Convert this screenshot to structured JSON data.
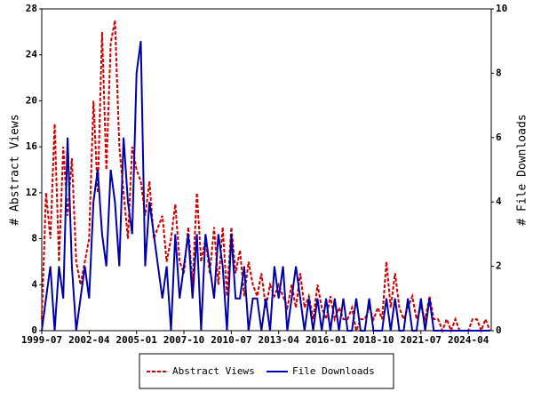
{
  "chart_data": {
    "type": "line",
    "y_label": "# Abstract Views",
    "y2_label": "# File Downloads",
    "x": [
      "1999-07",
      "1999-10",
      "2000-01",
      "2000-04",
      "2000-07",
      "2000-10",
      "2001-01",
      "2001-04",
      "2001-07",
      "2001-10",
      "2002-01",
      "2002-04",
      "2002-07",
      "2002-10",
      "2003-01",
      "2003-04",
      "2003-07",
      "2003-10",
      "2004-01",
      "2004-04",
      "2004-07",
      "2004-10",
      "2005-01",
      "2005-04",
      "2005-07",
      "2005-10",
      "2006-01",
      "2006-04",
      "2006-07",
      "2006-10",
      "2007-01",
      "2007-04",
      "2007-07",
      "2007-10",
      "2008-01",
      "2008-04",
      "2008-07",
      "2008-10",
      "2009-01",
      "2009-04",
      "2009-07",
      "2009-10",
      "2010-01",
      "2010-04",
      "2010-07",
      "2010-10",
      "2011-01",
      "2011-04",
      "2011-07",
      "2011-10",
      "2012-01",
      "2012-04",
      "2012-07",
      "2012-10",
      "2013-01",
      "2013-04",
      "2013-07",
      "2013-10",
      "2014-01",
      "2014-04",
      "2014-07",
      "2014-10",
      "2015-01",
      "2015-04",
      "2015-07",
      "2015-10",
      "2016-01",
      "2016-04",
      "2016-07",
      "2016-10",
      "2017-01",
      "2017-04",
      "2017-07",
      "2017-10",
      "2018-01",
      "2018-04",
      "2018-07",
      "2018-10",
      "2019-01",
      "2019-04",
      "2019-07",
      "2019-10",
      "2020-01",
      "2020-04",
      "2020-07",
      "2020-10",
      "2021-01",
      "2021-04",
      "2021-07",
      "2021-10",
      "2022-01",
      "2022-04",
      "2022-07",
      "2022-10",
      "2023-01",
      "2023-04",
      "2023-07",
      "2023-10",
      "2024-01",
      "2024-04",
      "2024-07",
      "2024-10",
      "2025-01",
      "2025-04",
      "2025-07"
    ],
    "series": [
      {
        "name": "Abstract Views",
        "color": "#cc0000",
        "dash": true,
        "values": [
          1,
          12,
          8,
          18,
          6,
          16,
          10,
          15,
          6,
          4,
          6,
          8,
          20,
          12,
          26,
          14,
          25,
          27,
          16,
          12,
          8,
          16,
          14,
          13,
          10,
          13,
          8,
          9,
          10,
          6,
          8,
          11,
          6,
          5,
          9,
          4,
          12,
          6,
          8,
          5,
          9,
          4,
          9,
          3,
          9,
          5,
          7,
          3,
          6,
          4,
          3,
          5,
          2,
          4,
          3,
          4,
          3,
          2,
          4,
          2,
          5,
          2,
          3,
          1,
          4,
          2,
          1,
          3,
          1,
          2,
          1,
          1,
          2,
          0,
          1,
          1,
          2,
          1,
          2,
          1,
          6,
          2,
          5,
          2,
          1,
          2,
          3,
          1,
          2,
          1,
          3,
          1,
          1,
          0,
          1,
          0,
          1,
          0,
          0,
          0,
          1,
          1,
          0,
          1,
          0
        ]
      },
      {
        "name": "File Downloads",
        "color": "#0000aa",
        "dash": false,
        "axis": "y2",
        "values": [
          0,
          1,
          2,
          0,
          2,
          1,
          6,
          2,
          0,
          1,
          2,
          1,
          4,
          5,
          3,
          2,
          5,
          4,
          2,
          6,
          4,
          3,
          8,
          9,
          2,
          4,
          3,
          2,
          1,
          2,
          0,
          3,
          1,
          2,
          3,
          1,
          3,
          0,
          3,
          2,
          1,
          3,
          2,
          0,
          3,
          1,
          1,
          2,
          0,
          1,
          1,
          0,
          1,
          0,
          2,
          1,
          2,
          0,
          1,
          2,
          1,
          0,
          1,
          0,
          1,
          0,
          1,
          0,
          1,
          0,
          1,
          0,
          0,
          1,
          0,
          0,
          1,
          0,
          0,
          0,
          1,
          0,
          1,
          0,
          0,
          1,
          0,
          0,
          1,
          0,
          1,
          0,
          0,
          0,
          0,
          0,
          0,
          0,
          0,
          0,
          0,
          0,
          0,
          0,
          0
        ]
      }
    ],
    "xlim": [
      "1999-07",
      "2025-08"
    ],
    "xticks": [
      "1999-07",
      "2002-04",
      "2005-01",
      "2007-10",
      "2010-07",
      "2013-04",
      "2016-01",
      "2018-10",
      "2021-07",
      "2024-04"
    ],
    "ylim": [
      0,
      28
    ],
    "yticks": [
      0,
      4,
      8,
      12,
      16,
      20,
      24,
      28
    ],
    "y2lim": [
      0,
      10
    ],
    "y2ticks": [
      0,
      2,
      4,
      6,
      8,
      10
    ],
    "legend": "bottom"
  }
}
